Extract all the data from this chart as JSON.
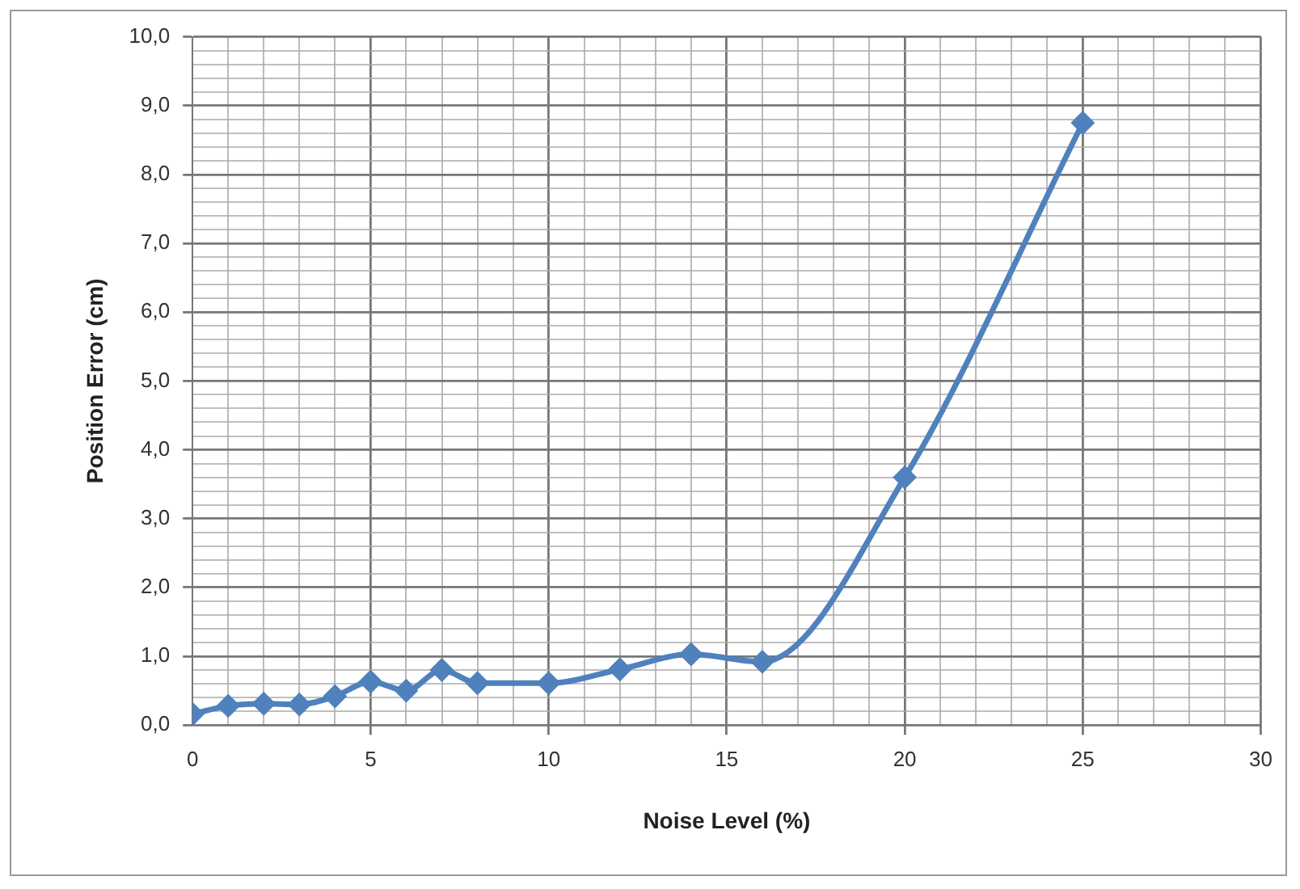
{
  "chart_data": {
    "type": "line",
    "xlabel": "Noise Level (%)",
    "ylabel": "Position Error (cm)",
    "x": [
      0,
      1,
      2,
      3,
      4,
      5,
      6,
      7,
      8,
      10,
      12,
      14,
      16,
      20,
      25
    ],
    "series": [
      {
        "color": "#4f81bd",
        "values": [
          0.16,
          0.28,
          0.31,
          0.3,
          0.42,
          0.63,
          0.5,
          0.8,
          0.61,
          0.61,
          0.81,
          1.03,
          0.92,
          3.6,
          8.75
        ]
      }
    ],
    "xlim": [
      0,
      30
    ],
    "xticks": [
      0,
      {
        "value": 1,
        "label": null
      },
      {
        "value": 2,
        "label": null
      },
      {
        "value": 3,
        "label": null
      },
      {
        "value": 4,
        "label": null
      },
      5,
      {
        "value": 6,
        "label": null
      },
      {
        "value": 7,
        "label": null
      },
      {
        "value": 8,
        "label": null
      },
      {
        "value": 9,
        "label": null
      },
      10,
      {
        "value": 11,
        "label": null
      },
      {
        "value": 12,
        "label": null
      },
      {
        "value": 13,
        "label": null
      },
      {
        "value": 14,
        "label": null
      },
      15,
      {
        "value": 16,
        "label": null
      },
      {
        "value": 17,
        "label": null
      },
      {
        "value": 18,
        "label": null
      },
      {
        "value": 19,
        "label": null
      },
      20,
      {
        "value": 21,
        "label": null
      },
      {
        "value": 22,
        "label": null
      },
      {
        "value": 23,
        "label": null
      },
      {
        "value": 24,
        "label": null
      },
      25,
      {
        "value": 26,
        "label": null
      },
      {
        "value": 27,
        "label": null
      },
      {
        "value": 28,
        "label": null
      },
      {
        "value": 29,
        "label": null
      },
      30
    ],
    "ylim": [
      0,
      10
    ],
    "yticks": [
      {
        "value": 0,
        "label": "0,0"
      },
      {
        "value": 0.2,
        "label": null
      },
      {
        "value": 0.4,
        "label": null
      },
      {
        "value": 0.6,
        "label": null
      },
      {
        "value": 0.8,
        "label": null
      },
      {
        "value": 1,
        "label": "1,0"
      },
      {
        "value": 1.2,
        "label": null
      },
      {
        "value": 1.4,
        "label": null
      },
      {
        "value": 1.6,
        "label": null
      },
      {
        "value": 1.8,
        "label": null
      },
      {
        "value": 2,
        "label": "2,0"
      },
      {
        "value": 2.2,
        "label": null
      },
      {
        "value": 2.4,
        "label": null
      },
      {
        "value": 2.6,
        "label": null
      },
      {
        "value": 2.8,
        "label": null
      },
      {
        "value": 3,
        "label": "3,0"
      },
      {
        "value": 3.2,
        "label": null
      },
      {
        "value": 3.4,
        "label": null
      },
      {
        "value": 3.6,
        "label": null
      },
      {
        "value": 3.8,
        "label": null
      },
      {
        "value": 4,
        "label": "4,0"
      },
      {
        "value": 4.2,
        "label": null
      },
      {
        "value": 4.4,
        "label": null
      },
      {
        "value": 4.6,
        "label": null
      },
      {
        "value": 4.8,
        "label": null
      },
      {
        "value": 5,
        "label": "5,0"
      },
      {
        "value": 5.2,
        "label": null
      },
      {
        "value": 5.4,
        "label": null
      },
      {
        "value": 5.6,
        "label": null
      },
      {
        "value": 5.8,
        "label": null
      },
      {
        "value": 6,
        "label": "6,0"
      },
      {
        "value": 6.2,
        "label": null
      },
      {
        "value": 6.4,
        "label": null
      },
      {
        "value": 6.6,
        "label": null
      },
      {
        "value": 6.8,
        "label": null
      },
      {
        "value": 7,
        "label": "7,0"
      },
      {
        "value": 7.2,
        "label": null
      },
      {
        "value": 7.4,
        "label": null
      },
      {
        "value": 7.6,
        "label": null
      },
      {
        "value": 7.8,
        "label": null
      },
      {
        "value": 8,
        "label": "8,0"
      },
      {
        "value": 8.2,
        "label": null
      },
      {
        "value": 8.4,
        "label": null
      },
      {
        "value": 8.6,
        "label": null
      },
      {
        "value": 8.8,
        "label": null
      },
      {
        "value": 9,
        "label": "9,0"
      },
      {
        "value": 9.2,
        "label": null
      },
      {
        "value": 9.4,
        "label": null
      },
      {
        "value": 9.6,
        "label": null
      },
      {
        "value": 9.8,
        "label": null
      },
      {
        "value": 10,
        "label": "10,0"
      }
    ],
    "grid": true,
    "marker": "diamond",
    "line_style": "solid"
  }
}
